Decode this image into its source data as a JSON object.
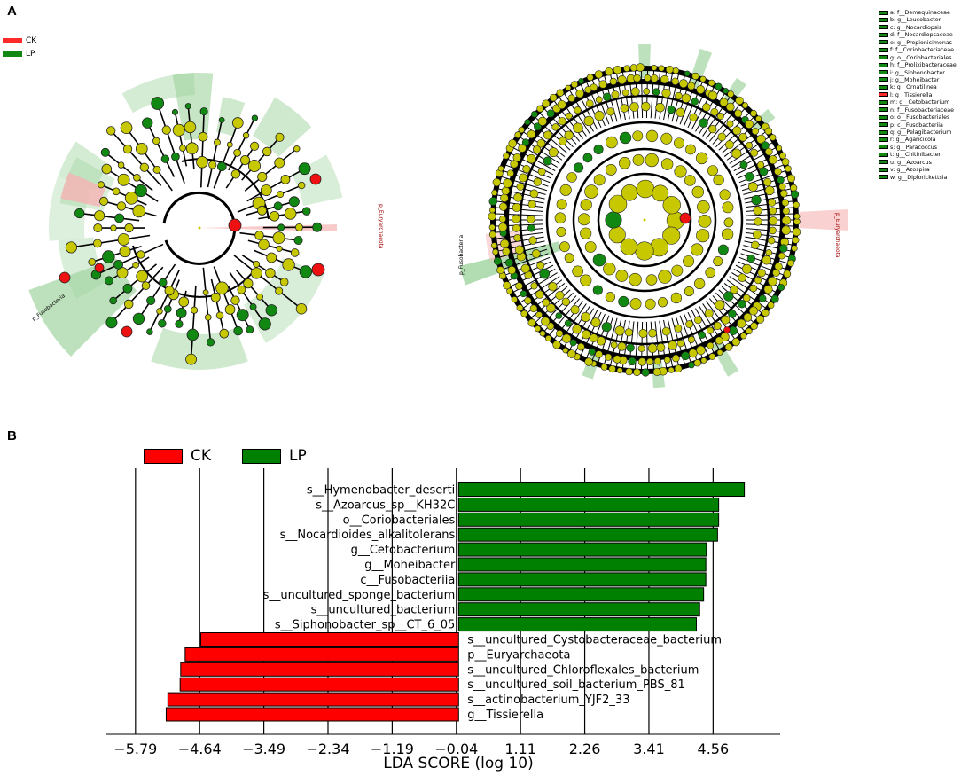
{
  "panels": {
    "a": {
      "letter": "A",
      "legend": [
        {
          "label": "CK",
          "color": "#ff2a2a"
        },
        {
          "label": "LP",
          "color": "#118811"
        }
      ],
      "left_cladogram": {
        "labels": [
          "p_Euryarchaeota",
          "p_Fusobacteria"
        ]
      },
      "right_cladogram": {
        "labels": [
          "p_Euryarchaeota",
          "p_Fusobacteria"
        ]
      },
      "taxa_legend": [
        {
          "label": "a: f__Demequinaceae",
          "color": "#118811"
        },
        {
          "label": "b: g__Leucobacter",
          "color": "#118811"
        },
        {
          "label": "c: g__Nocardiopsis",
          "color": "#118811"
        },
        {
          "label": "d: f__Nocardiopsaceae",
          "color": "#118811"
        },
        {
          "label": "e: g__Propionicimonas",
          "color": "#118811"
        },
        {
          "label": "f: f__Coriobacteriaceae",
          "color": "#118811"
        },
        {
          "label": "g: o__Coriobacteriales",
          "color": "#118811"
        },
        {
          "label": "h: f__Prolixibacteraceae",
          "color": "#118811"
        },
        {
          "label": "i: g__Siphonobacter",
          "color": "#118811"
        },
        {
          "label": "j: g__Moheibacter",
          "color": "#118811"
        },
        {
          "label": "k: g__Ornatilinea",
          "color": "#118811"
        },
        {
          "label": "l: g__Tissierella",
          "color": "#ff2a2a"
        },
        {
          "label": "m: g__Cetobacterium",
          "color": "#118811"
        },
        {
          "label": "n: f__Fusobacteriaceae",
          "color": "#118811"
        },
        {
          "label": "o: o__Fusobacteriales",
          "color": "#118811"
        },
        {
          "label": "p: c__Fusobacteriia",
          "color": "#118811"
        },
        {
          "label": "q: g__Pelagibacterium",
          "color": "#118811"
        },
        {
          "label": "r: g__Agaricicola",
          "color": "#118811"
        },
        {
          "label": "s: g__Paracoccus",
          "color": "#118811"
        },
        {
          "label": "t: g__Chitinibacter",
          "color": "#118811"
        },
        {
          "label": "u: g__Azoarcus",
          "color": "#118811"
        },
        {
          "label": "v: g__Azospira",
          "color": "#118811"
        },
        {
          "label": "w: g__Diplorickettsia",
          "color": "#118811"
        }
      ]
    },
    "b": {
      "letter": "B",
      "legend": [
        {
          "label": "CK",
          "color": "#ff0000"
        },
        {
          "label": "LP",
          "color": "#008000"
        }
      ]
    }
  },
  "chart_data": {
    "type": "bar",
    "orientation": "horizontal",
    "xlabel": "LDA SCORE (log 10)",
    "ylabel": "",
    "xticks": [
      "−5.79",
      "−4.64",
      "−3.49",
      "−2.34",
      "−1.19",
      "−0.04",
      "1.11",
      "2.26",
      "3.41",
      "4.56"
    ],
    "xlim": [
      -6.0,
      5.2
    ],
    "grid": "vertical",
    "legend_position": "top-left",
    "bars": [
      {
        "name": "s__Hymenobacter_deserti",
        "value": 5.12,
        "group": "LP"
      },
      {
        "name": "s__Azoarcus_sp__KH32C",
        "value": 4.66,
        "group": "LP"
      },
      {
        "name": "o__Coriobacteriales",
        "value": 4.66,
        "group": "LP"
      },
      {
        "name": "s__Nocardioides_alkalitolerans",
        "value": 4.64,
        "group": "LP"
      },
      {
        "name": "g__Cetobacterium",
        "value": 4.44,
        "group": "LP"
      },
      {
        "name": "g__Moheibacter",
        "value": 4.43,
        "group": "LP"
      },
      {
        "name": "c__Fusobacteriia",
        "value": 4.43,
        "group": "LP"
      },
      {
        "name": "s__uncultured_sponge_bacterium",
        "value": 4.39,
        "group": "LP"
      },
      {
        "name": "s__uncultured_bacterium",
        "value": 4.32,
        "group": "LP"
      },
      {
        "name": "s__Siphonobacter_sp__CT_6_05",
        "value": 4.26,
        "group": "LP"
      },
      {
        "name": "s__uncultured_Cystobacteraceae_bacterium",
        "value": -4.62,
        "group": "CK"
      },
      {
        "name": "p__Euryarchaeota",
        "value": -4.9,
        "group": "CK"
      },
      {
        "name": "s__uncultured_Chloroflexales_bacterium",
        "value": -4.98,
        "group": "CK"
      },
      {
        "name": "s__uncultured_soil_bacterium_PBS_81",
        "value": -4.99,
        "group": "CK"
      },
      {
        "name": "s__actinobacterium_YJF2_33",
        "value": -5.21,
        "group": "CK"
      },
      {
        "name": "g__Tissierella",
        "value": -5.24,
        "group": "CK"
      }
    ]
  },
  "colors": {
    "ck": "#ff0000",
    "lp": "#008000",
    "node_yellow": "#c8c800",
    "node_green": "#118811",
    "node_red": "#ee1111",
    "shade_green": "#9fd49f",
    "shade_red": "#f6b3b3"
  }
}
